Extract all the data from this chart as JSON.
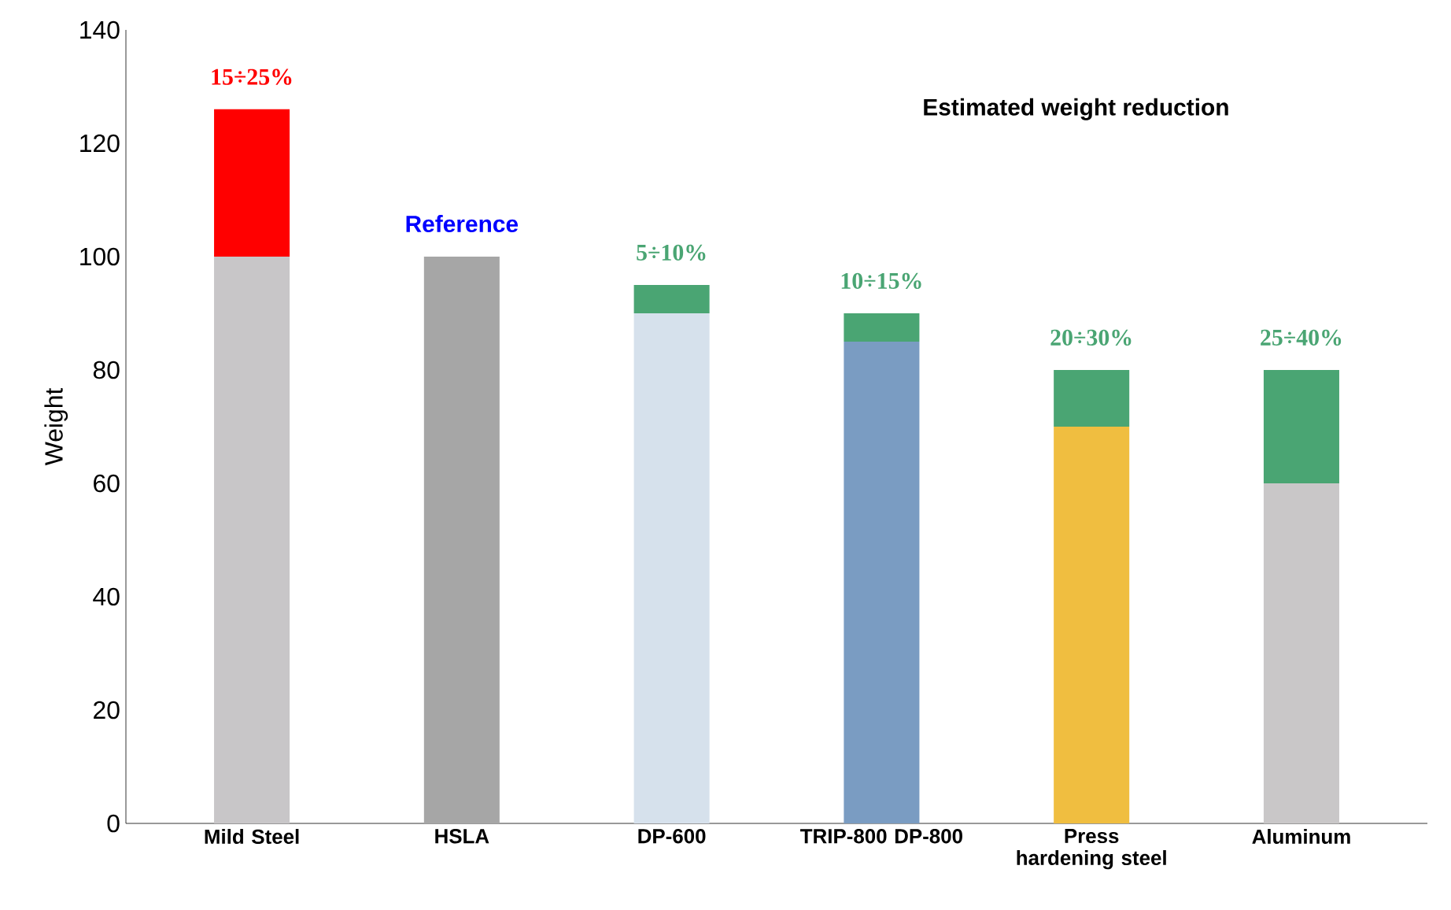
{
  "chart_data": {
    "type": "bar",
    "stacked": true,
    "ylabel": "Weight",
    "categories": [
      "Mild Steel",
      "HSLA",
      "DP-600",
      "TRIP-800 DP-800",
      "Press hardening steel",
      "Aluminum"
    ],
    "series": [
      {
        "colors": [
          "#c8c6c8",
          "#a6a6a6",
          "#d6e1ec",
          "#7a9cc2",
          "#f0be40",
          "#c9c7c8"
        ],
        "values": [
          100,
          100,
          90,
          85,
          70,
          60
        ]
      },
      {
        "colors": [
          "#ff0000",
          null,
          "#4aa573",
          "#4aa573",
          "#4aa573",
          "#4aa573"
        ],
        "values": [
          26,
          null,
          5,
          5,
          10,
          20
        ]
      }
    ],
    "ylim": [
      0,
      140
    ],
    "yticks": [
      0,
      20,
      40,
      60,
      80,
      100,
      120,
      140
    ],
    "grid": false,
    "annotations": [
      {
        "text": "15÷25%",
        "x": "Mild Steel",
        "y": 126
      },
      {
        "text": "Reference",
        "x": "HSLA",
        "y": 100
      },
      {
        "text": "5÷10%",
        "x": "DP-600",
        "y": 95
      },
      {
        "text": "10÷15%",
        "x": "TRIP-800 DP-800",
        "y": 90
      },
      {
        "text": "20÷30%",
        "x": "Press hardening steel",
        "y": 80
      },
      {
        "text": "25÷40%",
        "x": "Aluminum",
        "y": 80
      },
      "Estimated weight reduction"
    ]
  }
}
